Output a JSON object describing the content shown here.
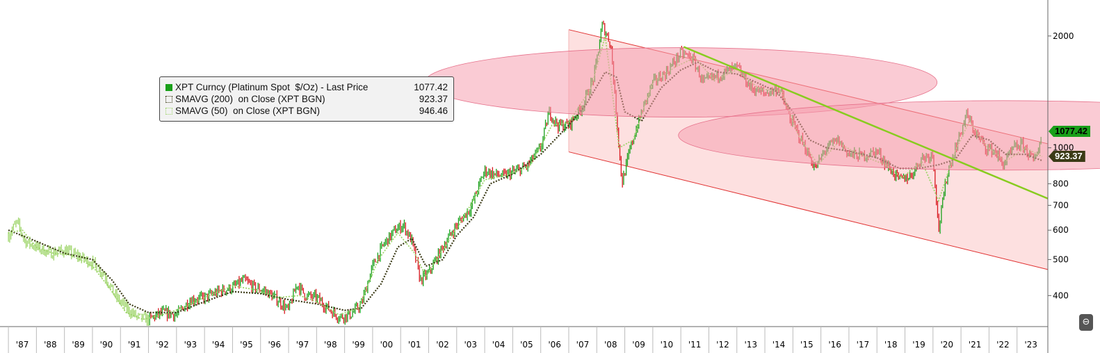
{
  "chart_data": {
    "type": "line",
    "title": "",
    "xlabel": "",
    "ylabel": "",
    "x_ticks": [
      "'87",
      "'88",
      "'89",
      "'90",
      "'91",
      "'92",
      "'93",
      "'94",
      "'95",
      "'96",
      "'97",
      "'98",
      "'99",
      "'00",
      "'01",
      "'02",
      "'03",
      "'04",
      "'05",
      "'06",
      "'07",
      "'08",
      "'09",
      "'10",
      "'11",
      "'12",
      "'13",
      "'14",
      "'15",
      "'16",
      "'17",
      "'18",
      "'19",
      "'20",
      "'21",
      "'22",
      "'23"
    ],
    "y_ticks": [
      400,
      500,
      600,
      700,
      800,
      1000,
      2000
    ],
    "y_scale": "log",
    "xlim": [
      1986.7,
      2024.1
    ],
    "ylim": [
      330,
      2500
    ],
    "series": [
      {
        "name": "XPT Curncy (Platinum Spot $/Oz) - Last Price",
        "last": "1077.42",
        "color": "#1aa01a",
        "points": [
          [
            1987.0,
            580
          ],
          [
            1987.3,
            630
          ],
          [
            1987.6,
            560
          ],
          [
            1988.0,
            540
          ],
          [
            1988.5,
            520
          ],
          [
            1989.0,
            530
          ],
          [
            1989.5,
            510
          ],
          [
            1990.0,
            490
          ],
          [
            1990.4,
            460
          ],
          [
            1990.8,
            400
          ],
          [
            1991.2,
            370
          ],
          [
            1991.6,
            350
          ],
          [
            1992.0,
            345
          ],
          [
            1992.5,
            360
          ],
          [
            1993.0,
            355
          ],
          [
            1993.5,
            390
          ],
          [
            1994.0,
            395
          ],
          [
            1994.5,
            410
          ],
          [
            1995.0,
            420
          ],
          [
            1995.4,
            440
          ],
          [
            1995.8,
            420
          ],
          [
            1996.2,
            410
          ],
          [
            1996.6,
            390
          ],
          [
            1997.0,
            365
          ],
          [
            1997.3,
            430
          ],
          [
            1997.6,
            400
          ],
          [
            1998.0,
            395
          ],
          [
            1998.4,
            370
          ],
          [
            1998.8,
            350
          ],
          [
            1999.2,
            355
          ],
          [
            1999.6,
            380
          ],
          [
            2000.0,
            480
          ],
          [
            2000.4,
            550
          ],
          [
            2000.8,
            600
          ],
          [
            2001.1,
            620
          ],
          [
            2001.4,
            560
          ],
          [
            2001.7,
            440
          ],
          [
            2002.0,
            460
          ],
          [
            2002.5,
            540
          ],
          [
            2003.0,
            620
          ],
          [
            2003.5,
            690
          ],
          [
            2004.0,
            870
          ],
          [
            2004.3,
            850
          ],
          [
            2004.7,
            840
          ],
          [
            2005.0,
            860
          ],
          [
            2005.5,
            890
          ],
          [
            2006.0,
            1000
          ],
          [
            2006.3,
            1250
          ],
          [
            2006.6,
            1150
          ],
          [
            2007.0,
            1150
          ],
          [
            2007.5,
            1300
          ],
          [
            2007.9,
            1550
          ],
          [
            2008.2,
            2150
          ],
          [
            2008.5,
            1900
          ],
          [
            2008.9,
            800
          ],
          [
            2009.2,
            1000
          ],
          [
            2009.6,
            1250
          ],
          [
            2010.0,
            1500
          ],
          [
            2010.5,
            1600
          ],
          [
            2011.0,
            1800
          ],
          [
            2011.4,
            1750
          ],
          [
            2011.8,
            1500
          ],
          [
            2012.2,
            1550
          ],
          [
            2012.6,
            1600
          ],
          [
            2013.0,
            1650
          ],
          [
            2013.5,
            1450
          ],
          [
            2014.0,
            1400
          ],
          [
            2014.5,
            1450
          ],
          [
            2014.9,
            1200
          ],
          [
            2015.3,
            1050
          ],
          [
            2015.8,
            880
          ],
          [
            2016.2,
            1000
          ],
          [
            2016.6,
            1050
          ],
          [
            2017.0,
            960
          ],
          [
            2017.5,
            950
          ],
          [
            2018.0,
            980
          ],
          [
            2018.4,
            890
          ],
          [
            2018.8,
            820
          ],
          [
            2019.2,
            840
          ],
          [
            2019.6,
            940
          ],
          [
            2020.0,
            960
          ],
          [
            2020.2,
            600
          ],
          [
            2020.5,
            850
          ],
          [
            2020.9,
            1050
          ],
          [
            2021.2,
            1230
          ],
          [
            2021.5,
            1100
          ],
          [
            2021.9,
            1000
          ],
          [
            2022.2,
            980
          ],
          [
            2022.5,
            900
          ],
          [
            2022.9,
            1000
          ],
          [
            2023.2,
            1020
          ],
          [
            2023.6,
            920
          ],
          [
            2023.9,
            1077.42
          ]
        ]
      },
      {
        "name": "SMAVG (200) on Close (XPT BGN)",
        "last": "923.37",
        "color": "#3b3a16",
        "points": [
          [
            1987.0,
            600
          ],
          [
            1988.0,
            560
          ],
          [
            1989.0,
            520
          ],
          [
            1990.0,
            500
          ],
          [
            1990.7,
            440
          ],
          [
            1991.3,
            380
          ],
          [
            1992.0,
            360
          ],
          [
            1993.0,
            360
          ],
          [
            1994.0,
            385
          ],
          [
            1995.0,
            410
          ],
          [
            1996.0,
            405
          ],
          [
            1997.0,
            390
          ],
          [
            1998.0,
            380
          ],
          [
            1999.0,
            365
          ],
          [
            1999.6,
            370
          ],
          [
            2000.3,
            430
          ],
          [
            2000.9,
            540
          ],
          [
            2001.4,
            570
          ],
          [
            2001.9,
            480
          ],
          [
            2002.5,
            500
          ],
          [
            2003.0,
            580
          ],
          [
            2003.6,
            650
          ],
          [
            2004.2,
            800
          ],
          [
            2005.0,
            850
          ],
          [
            2006.0,
            960
          ],
          [
            2007.0,
            1150
          ],
          [
            2007.6,
            1300
          ],
          [
            2008.3,
            1600
          ],
          [
            2008.7,
            1550
          ],
          [
            2009.0,
            1250
          ],
          [
            2009.6,
            1180
          ],
          [
            2010.3,
            1450
          ],
          [
            2011.0,
            1620
          ],
          [
            2011.6,
            1700
          ],
          [
            2012.3,
            1600
          ],
          [
            2013.0,
            1580
          ],
          [
            2013.7,
            1500
          ],
          [
            2014.4,
            1420
          ],
          [
            2015.0,
            1250
          ],
          [
            2015.6,
            1050
          ],
          [
            2016.2,
            1000
          ],
          [
            2017.0,
            980
          ],
          [
            2018.0,
            940
          ],
          [
            2018.8,
            880
          ],
          [
            2019.5,
            880
          ],
          [
            2020.2,
            900
          ],
          [
            2020.8,
            930
          ],
          [
            2021.4,
            1080
          ],
          [
            2022.0,
            1050
          ],
          [
            2022.6,
            960
          ],
          [
            2023.3,
            960
          ],
          [
            2023.9,
            923.37
          ]
        ]
      },
      {
        "name": "SMAVG (50) on Close (XPT BGN)",
        "last": "946.46",
        "color": "#9ed56a",
        "points": [
          [
            1987.0,
            590
          ],
          [
            1987.5,
            600
          ],
          [
            1988.0,
            540
          ],
          [
            1988.6,
            520
          ],
          [
            1989.2,
            515
          ],
          [
            1990.0,
            480
          ],
          [
            1990.6,
            420
          ],
          [
            1991.2,
            360
          ],
          [
            1991.8,
            345
          ],
          [
            1992.5,
            355
          ],
          [
            1993.2,
            370
          ],
          [
            1994.0,
            395
          ],
          [
            1995.0,
            425
          ],
          [
            1995.8,
            415
          ],
          [
            1996.6,
            395
          ],
          [
            1997.4,
            400
          ],
          [
            1998.0,
            385
          ],
          [
            1998.8,
            355
          ],
          [
            1999.5,
            370
          ],
          [
            2000.2,
            500
          ],
          [
            2000.9,
            590
          ],
          [
            2001.5,
            520
          ],
          [
            2001.9,
            450
          ],
          [
            2002.5,
            530
          ],
          [
            2003.2,
            640
          ],
          [
            2004.0,
            820
          ],
          [
            2004.8,
            845
          ],
          [
            2005.6,
            890
          ],
          [
            2006.4,
            1150
          ],
          [
            2007.0,
            1170
          ],
          [
            2007.8,
            1450
          ],
          [
            2008.3,
            2000
          ],
          [
            2008.8,
            1000
          ],
          [
            2009.3,
            1050
          ],
          [
            2010.0,
            1500
          ],
          [
            2010.8,
            1650
          ],
          [
            2011.5,
            1750
          ],
          [
            2012.2,
            1520
          ],
          [
            2013.0,
            1620
          ],
          [
            2013.8,
            1440
          ],
          [
            2014.6,
            1420
          ],
          [
            2015.2,
            1080
          ],
          [
            2015.9,
            900
          ],
          [
            2016.6,
            1030
          ],
          [
            2017.5,
            950
          ],
          [
            2018.3,
            900
          ],
          [
            2018.9,
            830
          ],
          [
            2019.6,
            920
          ],
          [
            2020.2,
            720
          ],
          [
            2020.8,
            980
          ],
          [
            2021.3,
            1180
          ],
          [
            2021.9,
            1010
          ],
          [
            2022.6,
            920
          ],
          [
            2023.3,
            1000
          ],
          [
            2023.9,
            946.46
          ]
        ]
      }
    ],
    "annotations": {
      "channel_upper": [
        [
          2007.0,
          2080
        ],
        [
          2024.1,
          1025
        ]
      ],
      "channel_lower": [
        [
          2007.0,
          975
        ],
        [
          2024.1,
          470
        ]
      ],
      "trendline": [
        [
          2011.1,
          1870
        ],
        [
          2024.1,
          730
        ]
      ],
      "ellipses": [
        {
          "cx": 2011.0,
          "cy": 1500
        },
        {
          "cx": 2022.5,
          "cy": 1080
        }
      ]
    },
    "colors": {
      "up": "#1aa01a",
      "down": "#d8171e",
      "channel_fill": "#fde0e0",
      "ellipse_fill": "#f5a0b0",
      "trendline": "#88cc1f"
    },
    "grid": false,
    "legend_position": "top-left"
  },
  "legend": {
    "rows": [
      {
        "label": "XPT Curncy (Platinum Spot  $/Oz) - Last Price",
        "value": "1077.42"
      },
      {
        "label": "SMAVG (200)  on Close (XPT BGN)",
        "value": "923.37"
      },
      {
        "label": "SMAVG (50)  on Close (XPT BGN)",
        "value": "946.46"
      }
    ]
  },
  "tags": {
    "last_price": "1077.42",
    "smavg200": "923.37"
  },
  "edge_button": "⊖"
}
